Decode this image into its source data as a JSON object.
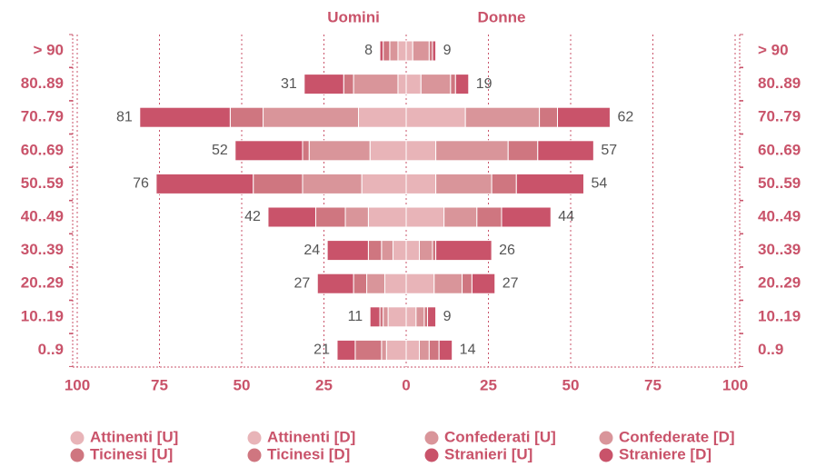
{
  "chart_data": {
    "type": "pyramid",
    "left_title": "Uomini",
    "right_title": "Donne",
    "categories": [
      "> 90",
      "80..89",
      "70..79",
      "60..69",
      "50..59",
      "40..49",
      "30..39",
      "20..29",
      "10..19",
      "0..9"
    ],
    "series": [
      {
        "name": "Attinenti [U]",
        "side": "left",
        "color": "#e8b4b8",
        "values": [
          2.5,
          2.5,
          14.5,
          11,
          13.5,
          11.5,
          4,
          6.5,
          5.5,
          6
        ]
      },
      {
        "name": "Attinenti [D]",
        "side": "right",
        "color": "#e8b4b8",
        "values": [
          2,
          4.5,
          18,
          9,
          9,
          11.5,
          4,
          8.5,
          3,
          4
        ]
      },
      {
        "name": "Confederati [U]",
        "side": "left",
        "color": "#d9959a",
        "values": [
          2.5,
          13.5,
          29,
          18.5,
          18,
          7,
          3.5,
          5.5,
          1.5,
          1.5
        ]
      },
      {
        "name": "Confederate [D]",
        "side": "right",
        "color": "#d9959a",
        "values": [
          5,
          9,
          22.5,
          22,
          17,
          10,
          4,
          8.5,
          2.5,
          3
        ]
      },
      {
        "name": "Ticinesi [U]",
        "side": "left",
        "color": "#cf7680",
        "values": [
          2,
          3,
          10,
          2,
          15,
          9,
          4,
          4,
          1,
          8
        ]
      },
      {
        "name": "Ticinesi [D]",
        "side": "right",
        "color": "#cf7680",
        "values": [
          1,
          1.5,
          5.5,
          9,
          7.5,
          7.5,
          1,
          3,
          1,
          3
        ]
      },
      {
        "name": "Stranieri [U]",
        "side": "left",
        "color": "#c9536a",
        "values": [
          1,
          12,
          27.5,
          20.5,
          29.5,
          14.5,
          12.5,
          11,
          3,
          5.5
        ]
      },
      {
        "name": "Straniere [D]",
        "side": "right",
        "color": "#c9536a",
        "values": [
          1,
          4,
          16,
          17,
          20.5,
          15,
          17,
          7,
          2.5,
          4
        ]
      }
    ],
    "left_totals": [
      8,
      31,
      81,
      52,
      76,
      42,
      24,
      27,
      11,
      21
    ],
    "right_totals": [
      9,
      19,
      62,
      57,
      54,
      44,
      26,
      27,
      9,
      14
    ],
    "xlim": [
      -100,
      100
    ],
    "xticks": [
      {
        "value": -100,
        "label": "100"
      },
      {
        "value": -75,
        "label": "75"
      },
      {
        "value": -50,
        "label": "50"
      },
      {
        "value": -25,
        "label": "25"
      },
      0,
      25,
      50,
      75,
      100
    ],
    "grid": true
  }
}
